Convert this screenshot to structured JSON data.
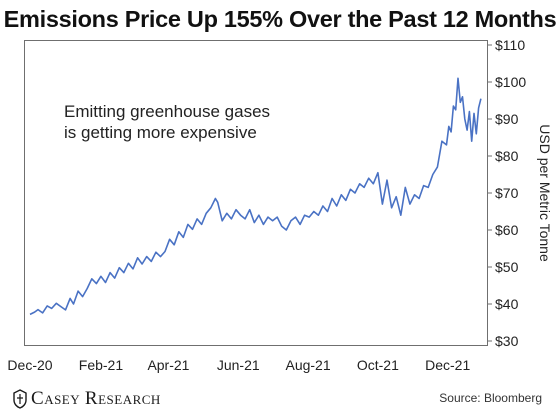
{
  "title": "Emissions Price Up 155% Over the Past 12 Months",
  "annotation": [
    "Emitting greenhouse gases",
    "is getting more expensive"
  ],
  "brand": "Casey Research",
  "source": "Source: Bloomberg",
  "chart_data": {
    "type": "line",
    "title": "Emissions Price Up 155% Over the Past 12 Months",
    "xlabel": "",
    "ylabel": "USD per Metric Tonne",
    "ylim": [
      30,
      110
    ],
    "yticks": [
      30,
      40,
      50,
      60,
      70,
      80,
      90,
      100,
      110
    ],
    "ytick_labels": [
      "$30",
      "$40",
      "$50",
      "$60",
      "$70",
      "$80",
      "$90",
      "$100",
      "$110"
    ],
    "ytick_side": "right",
    "xlim": [
      "2020-12-01",
      "2021-12-31"
    ],
    "xtick_labels": [
      "Dec-20",
      "Feb-21",
      "Apr-21",
      "Jun-21",
      "Aug-21",
      "Oct-21",
      "Dec-21"
    ],
    "xtick_dates": [
      "2020-12-01",
      "2021-02-01",
      "2021-04-01",
      "2021-06-01",
      "2021-08-01",
      "2021-10-01",
      "2021-12-01"
    ],
    "grid": false,
    "line_color": "#4a72c4",
    "series": [
      {
        "x": [
          "2020-12-01",
          "2020-12-05",
          "2020-12-08",
          "2020-12-12",
          "2020-12-16",
          "2020-12-20",
          "2020-12-24",
          "2020-12-28",
          "2021-01-01",
          "2021-01-05",
          "2021-01-08",
          "2021-01-12",
          "2021-01-16",
          "2021-01-20",
          "2021-01-24",
          "2021-01-28",
          "2021-02-01",
          "2021-02-05",
          "2021-02-09",
          "2021-02-13",
          "2021-02-17",
          "2021-02-21",
          "2021-02-25",
          "2021-03-01",
          "2021-03-05",
          "2021-03-09",
          "2021-03-13",
          "2021-03-17",
          "2021-03-21",
          "2021-03-25",
          "2021-03-29",
          "2021-04-02",
          "2021-04-06",
          "2021-04-10",
          "2021-04-14",
          "2021-04-18",
          "2021-04-22",
          "2021-04-26",
          "2021-04-30",
          "2021-05-04",
          "2021-05-08",
          "2021-05-12",
          "2021-05-14",
          "2021-05-18",
          "2021-05-22",
          "2021-05-26",
          "2021-05-30",
          "2021-06-03",
          "2021-06-07",
          "2021-06-11",
          "2021-06-15",
          "2021-06-19",
          "2021-06-23",
          "2021-06-27",
          "2021-07-01",
          "2021-07-05",
          "2021-07-09",
          "2021-07-13",
          "2021-07-17",
          "2021-07-21",
          "2021-07-25",
          "2021-07-29",
          "2021-08-02",
          "2021-08-06",
          "2021-08-10",
          "2021-08-14",
          "2021-08-18",
          "2021-08-22",
          "2021-08-26",
          "2021-08-30",
          "2021-09-03",
          "2021-09-07",
          "2021-09-11",
          "2021-09-15",
          "2021-09-19",
          "2021-09-23",
          "2021-09-27",
          "2021-10-01",
          "2021-10-05",
          "2021-10-09",
          "2021-10-13",
          "2021-10-17",
          "2021-10-21",
          "2021-10-25",
          "2021-10-29",
          "2021-11-02",
          "2021-11-06",
          "2021-11-10",
          "2021-11-14",
          "2021-11-18",
          "2021-11-22",
          "2021-11-26",
          "2021-11-30",
          "2021-12-02",
          "2021-12-04",
          "2021-12-06",
          "2021-12-08",
          "2021-12-10",
          "2021-12-12",
          "2021-12-14",
          "2021-12-16",
          "2021-12-18",
          "2021-12-20",
          "2021-12-22",
          "2021-12-24",
          "2021-12-26",
          "2021-12-28",
          "2021-12-30"
        ],
        "y": [
          37.2,
          37.8,
          38.5,
          37.6,
          39.5,
          38.8,
          40.2,
          39.3,
          38.4,
          41.5,
          40.0,
          43.5,
          42.0,
          44.2,
          46.8,
          45.5,
          47.5,
          45.8,
          48.5,
          47.0,
          49.8,
          48.5,
          51.0,
          49.5,
          52.5,
          50.8,
          52.8,
          51.5,
          54.0,
          52.8,
          54.2,
          57.5,
          56.0,
          59.5,
          58.0,
          61.5,
          60.2,
          63.0,
          61.5,
          64.5,
          66.0,
          68.5,
          67.5,
          62.5,
          64.5,
          63.0,
          65.5,
          64.0,
          63.0,
          65.5,
          62.0,
          64.0,
          61.5,
          63.5,
          62.5,
          63.5,
          61.0,
          60.0,
          62.5,
          63.5,
          61.5,
          64.0,
          63.5,
          65.0,
          64.0,
          66.5,
          65.0,
          68.5,
          66.5,
          69.5,
          68.0,
          71.0,
          70.0,
          72.5,
          71.5,
          74.0,
          72.5,
          75.5,
          67.0,
          73.5,
          66.0,
          69.0,
          64.0,
          71.5,
          67.0,
          69.5,
          68.5,
          72.0,
          71.5,
          75.0,
          77.0,
          84.0,
          83.0,
          88.0,
          86.5,
          93.5,
          92.5,
          101.0,
          94.5,
          96.0,
          90.0,
          87.0,
          92.0,
          84.0,
          91.5,
          86.0,
          93.0,
          95.5
        ]
      }
    ]
  }
}
